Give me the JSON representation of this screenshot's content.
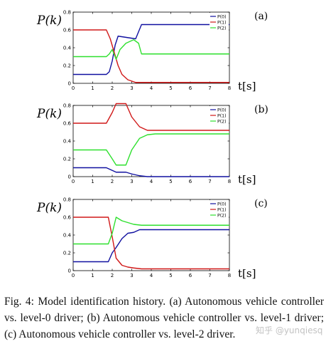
{
  "caption": "Fig. 4: Model identification history. (a) Autonomous vehicle controller vs. level-0 driver; (b) Autonomous vehicle controller vs. level-1 driver; (c) Autonomous vehicle controller vs. level-2 driver.",
  "watermark": "知乎 @yunqiesq",
  "chart_data": [
    {
      "type": "line",
      "panel_label": "(a)",
      "ylabel": "P(k)",
      "xlabel": "t[s]",
      "xlim": [
        0,
        8
      ],
      "ylim": [
        0,
        0.8
      ],
      "xticks": [
        "0",
        "1",
        "2",
        "3",
        "4",
        "5",
        "6",
        "7",
        "8"
      ],
      "yticks": [
        "0",
        "0.2",
        "0.4",
        "0.6",
        "0.8"
      ],
      "grid": false,
      "legend": "top-right",
      "series": [
        {
          "name": "P(0)",
          "color": "#1010a0",
          "x": [
            0,
            1.7,
            1.85,
            2.0,
            2.15,
            2.3,
            2.6,
            3.2,
            3.5,
            4.0,
            5,
            6,
            7,
            8
          ],
          "y": [
            0.1,
            0.1,
            0.13,
            0.25,
            0.43,
            0.53,
            0.52,
            0.5,
            0.66,
            0.66,
            0.66,
            0.66,
            0.66,
            0.66
          ]
        },
        {
          "name": "P(1)",
          "color": "#d01818",
          "x": [
            0,
            1.7,
            1.9,
            2.1,
            2.3,
            2.5,
            2.8,
            3.2,
            3.6,
            4,
            5,
            6,
            7,
            8
          ],
          "y": [
            0.6,
            0.6,
            0.5,
            0.35,
            0.2,
            0.1,
            0.04,
            0.01,
            0.01,
            0.01,
            0.01,
            0.01,
            0.01,
            0.01
          ]
        },
        {
          "name": "P(2)",
          "color": "#2ee02e",
          "x": [
            0,
            1.7,
            1.85,
            2.0,
            2.2,
            2.4,
            2.7,
            3.1,
            3.35,
            3.5,
            4,
            5,
            6,
            7,
            8
          ],
          "y": [
            0.3,
            0.3,
            0.33,
            0.38,
            0.27,
            0.38,
            0.45,
            0.49,
            0.45,
            0.33,
            0.33,
            0.33,
            0.33,
            0.33,
            0.33
          ]
        }
      ]
    },
    {
      "type": "line",
      "panel_label": "(b)",
      "ylabel": "P(k)",
      "xlabel": "t[s]",
      "xlim": [
        0,
        8
      ],
      "ylim": [
        0,
        0.8
      ],
      "xticks": [
        "0",
        "1",
        "2",
        "3",
        "4",
        "5",
        "6",
        "7",
        "8"
      ],
      "yticks": [
        "0",
        "0.2",
        "0.4",
        "0.6",
        "0.8"
      ],
      "grid": false,
      "legend": "top-right",
      "series": [
        {
          "name": "P(0)",
          "color": "#1010a0",
          "x": [
            0,
            1.7,
            2.0,
            2.2,
            2.7,
            3.0,
            3.4,
            3.8,
            4.2,
            5,
            6,
            7,
            8
          ],
          "y": [
            0.1,
            0.1,
            0.07,
            0.05,
            0.05,
            0.03,
            0.01,
            0.0,
            0.0,
            0.0,
            0.0,
            0.0,
            0.0
          ]
        },
        {
          "name": "P(1)",
          "color": "#d01818",
          "x": [
            0,
            1.7,
            2.0,
            2.2,
            2.7,
            3.0,
            3.4,
            3.8,
            4.2,
            5,
            6,
            7,
            8
          ],
          "y": [
            0.6,
            0.6,
            0.72,
            0.82,
            0.82,
            0.67,
            0.56,
            0.52,
            0.52,
            0.52,
            0.52,
            0.52,
            0.52
          ]
        },
        {
          "name": "P(2)",
          "color": "#2ee02e",
          "x": [
            0,
            1.7,
            2.0,
            2.2,
            2.7,
            3.0,
            3.4,
            3.8,
            4.2,
            5,
            6,
            7,
            8
          ],
          "y": [
            0.3,
            0.3,
            0.2,
            0.13,
            0.13,
            0.3,
            0.43,
            0.47,
            0.48,
            0.48,
            0.48,
            0.48,
            0.48
          ]
        }
      ]
    },
    {
      "type": "line",
      "panel_label": "(c)",
      "ylabel": "P(k)",
      "xlabel": "t[s]",
      "xlim": [
        0,
        8
      ],
      "ylim": [
        0,
        0.8
      ],
      "xticks": [
        "0",
        "1",
        "2",
        "3",
        "4",
        "5",
        "6",
        "7",
        "8"
      ],
      "yticks": [
        "0",
        "0.2",
        "0.4",
        "0.6",
        "0.8"
      ],
      "grid": false,
      "legend": "top-right",
      "series": [
        {
          "name": "P(0)",
          "color": "#1010a0",
          "x": [
            0,
            1.8,
            2.0,
            2.2,
            2.5,
            2.8,
            3.1,
            3.4,
            4,
            5,
            6,
            7,
            8
          ],
          "y": [
            0.1,
            0.1,
            0.2,
            0.26,
            0.36,
            0.42,
            0.43,
            0.46,
            0.46,
            0.46,
            0.46,
            0.46,
            0.46
          ]
        },
        {
          "name": "P(1)",
          "color": "#d01818",
          "x": [
            0,
            1.8,
            2.0,
            2.2,
            2.5,
            2.8,
            3.1,
            3.5,
            4,
            5,
            6,
            7,
            8
          ],
          "y": [
            0.6,
            0.6,
            0.38,
            0.14,
            0.06,
            0.04,
            0.03,
            0.02,
            0.02,
            0.02,
            0.02,
            0.02,
            0.02
          ]
        },
        {
          "name": "P(2)",
          "color": "#2ee02e",
          "x": [
            0,
            1.8,
            2.0,
            2.2,
            2.5,
            2.8,
            3.1,
            3.5,
            4,
            5,
            6,
            7,
            8
          ],
          "y": [
            0.3,
            0.3,
            0.42,
            0.6,
            0.56,
            0.54,
            0.52,
            0.51,
            0.51,
            0.51,
            0.51,
            0.51,
            0.51
          ]
        }
      ]
    }
  ]
}
